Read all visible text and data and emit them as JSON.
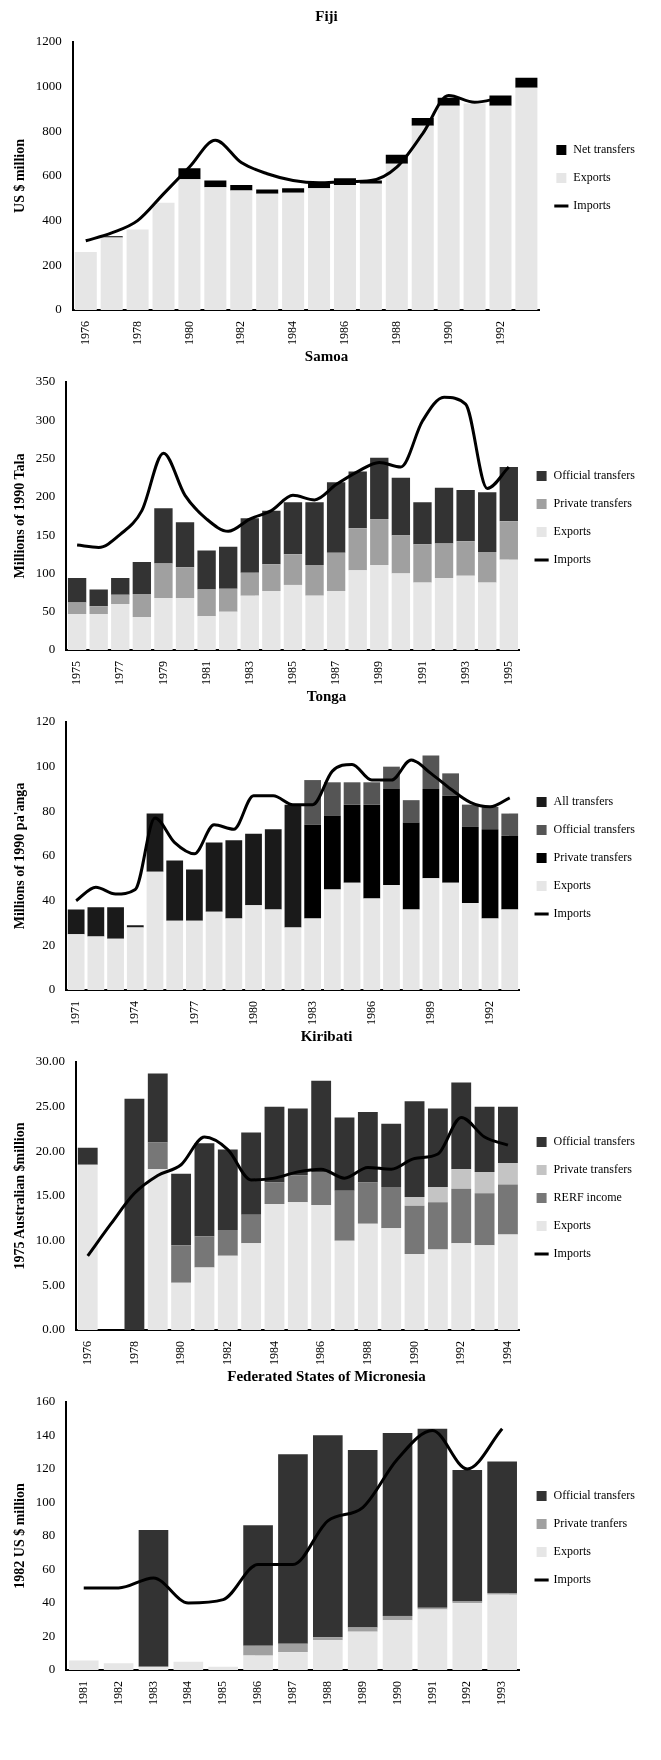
{
  "chart_data": [
    {
      "type": "bar",
      "title": "Fiji",
      "ylabel": "US $ million",
      "stacked": true,
      "legend": "right",
      "grid": false,
      "ylim": [
        0,
        1200
      ],
      "yticks": [
        0,
        200,
        400,
        600,
        800,
        1000,
        1200
      ],
      "categories": [
        "1976",
        null,
        "1978",
        null,
        "1980",
        null,
        "1982",
        null,
        "1984",
        null,
        "1986",
        null,
        "1988",
        null,
        "1990",
        null,
        "1992",
        null
      ],
      "series": [
        {
          "name": "Exports",
          "color": "#e6e6e6",
          "values": [
            260,
            325,
            360,
            480,
            585,
            550,
            535,
            520,
            525,
            545,
            560,
            565,
            655,
            825,
            915,
            925,
            915,
            995
          ]
        },
        {
          "name": "Net transfers",
          "color": "#000000",
          "values": [
            0,
            5,
            0,
            0,
            50,
            30,
            25,
            20,
            20,
            25,
            30,
            15,
            40,
            35,
            35,
            null,
            45,
            45
          ]
        },
        {
          "name": "Imports",
          "type": "line",
          "color": "#000000",
          "values": [
            310,
            345,
            400,
            520,
            640,
            760,
            660,
            610,
            580,
            570,
            575,
            580,
            640,
            790,
            960,
            930,
            950,
            null
          ]
        }
      ]
    },
    {
      "type": "bar",
      "title": "Samoa",
      "ylabel": "Millions of 1990 Tala",
      "stacked": true,
      "legend": "right",
      "grid": false,
      "ylim": [
        0,
        350
      ],
      "yticks": [
        0,
        50,
        100,
        150,
        200,
        250,
        300,
        350
      ],
      "categories": [
        "1975",
        null,
        "1977",
        null,
        "1979",
        null,
        "1981",
        null,
        "1983",
        null,
        "1985",
        null,
        "1987",
        null,
        "1989",
        null,
        "1991",
        null,
        "1993",
        null,
        "1995"
      ],
      "series": [
        {
          "name": "Exports",
          "color": "#e6e6e6",
          "values": [
            47,
            47,
            60,
            43,
            68,
            68,
            44,
            50,
            71,
            77,
            85,
            71,
            77,
            104,
            111,
            100,
            88,
            94,
            97,
            88,
            118
          ]
        },
        {
          "name": "Private transfers",
          "color": "#a0a0a0",
          "values": [
            15,
            10,
            12,
            30,
            45,
            40,
            35,
            30,
            30,
            35,
            40,
            40,
            50,
            55,
            60,
            50,
            50,
            45,
            45,
            40,
            50
          ]
        },
        {
          "name": "Official transfers",
          "color": "#333333",
          "values": [
            32,
            22,
            22,
            42,
            72,
            59,
            51,
            55,
            71,
            70,
            68,
            82,
            92,
            74,
            80,
            75,
            55,
            73,
            67,
            78,
            71
          ]
        },
        {
          "name": "Imports",
          "type": "line",
          "color": "#000000",
          "values": [
            137,
            134,
            151,
            182,
            257,
            202,
            171,
            155,
            171,
            182,
            202,
            196,
            216,
            233,
            245,
            239,
            299,
            330,
            321,
            211,
            239
          ]
        }
      ]
    },
    {
      "type": "bar",
      "title": "Tonga",
      "ylabel": "Millions of 1990 pa'anga",
      "stacked": true,
      "legend": "right",
      "grid": false,
      "ylim": [
        0,
        120
      ],
      "yticks": [
        0,
        20,
        40,
        60,
        80,
        100,
        120
      ],
      "categories": [
        "1971",
        null,
        null,
        "1974",
        null,
        null,
        "1977",
        null,
        null,
        "1980",
        null,
        null,
        "1983",
        null,
        null,
        "1986",
        null,
        null,
        "1989",
        null,
        null,
        "1992",
        null
      ],
      "series": [
        {
          "name": "Exports",
          "color": "#e6e6e6",
          "values": [
            25,
            24,
            23,
            28,
            53,
            31,
            31,
            35,
            32,
            38,
            36,
            28,
            32,
            45,
            48,
            41,
            47,
            36,
            50,
            48,
            39,
            32,
            36
          ]
        },
        {
          "name": "Private transfers",
          "color": "#000000",
          "values": [
            null,
            null,
            null,
            null,
            null,
            null,
            null,
            null,
            null,
            null,
            null,
            null,
            42,
            33,
            35,
            42,
            43,
            39,
            40,
            39,
            34,
            40,
            33
          ]
        },
        {
          "name": "Official transfers",
          "color": "#555555",
          "values": [
            null,
            null,
            null,
            null,
            null,
            null,
            null,
            null,
            null,
            null,
            null,
            null,
            20,
            15,
            10,
            10,
            10,
            10,
            15,
            10,
            10,
            10,
            10
          ]
        },
        {
          "name": "All transfers",
          "color": "#1a1a1a",
          "values": [
            11,
            13,
            14,
            1,
            26,
            27,
            23,
            31,
            35,
            32,
            36,
            55,
            null,
            null,
            null,
            null,
            null,
            null,
            null,
            null,
            null,
            null,
            null
          ]
        },
        {
          "name": "Imports",
          "type": "line",
          "color": "#000000",
          "values": [
            40,
            46,
            43,
            45,
            77,
            66,
            61,
            74,
            72,
            87,
            87,
            83,
            83,
            98,
            101,
            94,
            94,
            103,
            97,
            90,
            84,
            82,
            86
          ]
        }
      ]
    },
    {
      "type": "bar",
      "title": "Kiribati",
      "ylabel": "1975 Australian $million",
      "stacked": true,
      "legend": "right",
      "grid": false,
      "ylim": [
        0,
        30
      ],
      "yticks": [
        {
          "value": 0,
          "label": "0.00"
        },
        {
          "value": 5,
          "label": "5.00"
        },
        {
          "value": 10,
          "label": "10.00"
        },
        {
          "value": 15,
          "label": "15.00"
        },
        {
          "value": 20,
          "label": "20.00"
        },
        {
          "value": 25,
          "label": "25.00"
        },
        {
          "value": 30,
          "label": "30.00"
        }
      ],
      "categories": [
        "1976",
        null,
        "1978",
        null,
        "1980",
        null,
        "1982",
        null,
        "1984",
        null,
        "1986",
        null,
        "1988",
        null,
        "1990",
        null,
        "1992",
        null,
        "1994"
      ],
      "series": [
        {
          "name": "Exports",
          "color": "#e6e6e6",
          "values": [
            18.5,
            null,
            null,
            18,
            5.3,
            7,
            8.3,
            9.7,
            14.1,
            14.3,
            14,
            10,
            11.9,
            11.4,
            8.5,
            9,
            9.7,
            9.5,
            10.7
          ]
        },
        {
          "name": "RERF income",
          "color": "#777777",
          "values": [
            null,
            null,
            null,
            3,
            4.2,
            3.5,
            2.9,
            3.2,
            2.4,
            3,
            3.7,
            5.6,
            4.6,
            4.6,
            5.4,
            5.3,
            6.1,
            5.8,
            5.6
          ]
        },
        {
          "name": "Private transfers",
          "color": "#c4c4c4",
          "values": [
            null,
            null,
            null,
            null,
            null,
            null,
            null,
            null,
            null,
            null,
            null,
            null,
            null,
            null,
            1,
            1.7,
            2.2,
            2.4,
            2.4
          ]
        },
        {
          "name": "Official transfers",
          "color": "#333333",
          "values": [
            1.9,
            null,
            25.9,
            7.7,
            8,
            10.4,
            9,
            9.2,
            8.5,
            7.5,
            10.2,
            8.2,
            7.9,
            7.1,
            10.7,
            8.8,
            9.7,
            7.3,
            6.3
          ]
        },
        {
          "name": "Imports",
          "type": "line",
          "color": "#000000",
          "values": [
            8.3,
            11.9,
            15.3,
            17.3,
            18.5,
            21.6,
            20.2,
            16.8,
            17,
            17.7,
            18,
            17,
            18.2,
            18,
            19.2,
            19.7,
            23.8,
            21.6,
            20.7
          ]
        }
      ]
    },
    {
      "type": "bar",
      "title": "Federated States of Micronesia",
      "ylabel": "1982 US $ million",
      "stacked": true,
      "legend": "right",
      "grid": false,
      "ylim": [
        0,
        160
      ],
      "yticks": [
        0,
        20,
        40,
        60,
        80,
        100,
        120,
        140,
        160
      ],
      "categories": [
        "1981",
        "1982",
        "1983",
        "1984",
        "1985",
        "1986",
        "1987",
        "1988",
        "1989",
        "1990",
        "1991",
        "1992",
        "1993"
      ],
      "series": [
        {
          "name": "Exports",
          "color": "#e6e6e6",
          "values": [
            5.6,
            4,
            2,
            5,
            2,
            8.6,
            10.7,
            17.8,
            22.9,
            29.7,
            36.1,
            39.9,
            45
          ]
        },
        {
          "name": "Private tranfers",
          "color": "#a0a0a0",
          "values": [
            null,
            null,
            null,
            null,
            null,
            5.9,
            5,
            1.8,
            2.5,
            2.6,
            1,
            1,
            1
          ]
        },
        {
          "name": "Official transfers",
          "color": "#333333",
          "values": [
            null,
            null,
            81.6,
            null,
            null,
            71.9,
            113.1,
            120.6,
            105.9,
            109.2,
            106.9,
            78.5,
            78.5
          ]
        },
        {
          "name": "Imports",
          "type": "line",
          "color": "#000000",
          "values": [
            49,
            49,
            55,
            40,
            42,
            63,
            63,
            89,
            97,
            126,
            143,
            120,
            144
          ]
        }
      ]
    }
  ]
}
